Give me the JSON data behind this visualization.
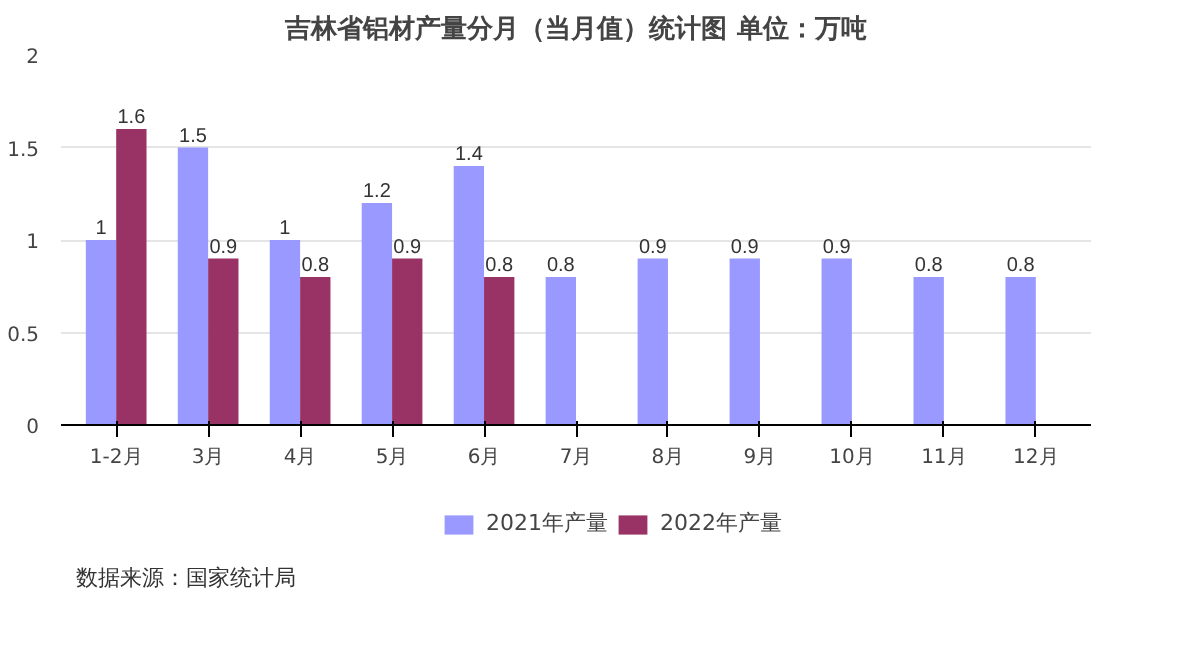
{
  "chart_data": {
    "type": "bar",
    "title": "吉林省铝材产量分月（当月值）统计图 单位：万吨",
    "categories": [
      "1-2月",
      "3月",
      "4月",
      "5月",
      "6月",
      "7月",
      "8月",
      "9月",
      "10月",
      "11月",
      "12月"
    ],
    "series": [
      {
        "name": "2021年产量",
        "color": "#9999ff",
        "values": [
          1,
          1.5,
          1,
          1.2,
          1.4,
          0.8,
          0.9,
          0.9,
          0.9,
          0.8,
          0.8
        ]
      },
      {
        "name": "2022年产量",
        "color": "#993366",
        "values": [
          1.6,
          0.9,
          0.8,
          0.9,
          0.8,
          null,
          null,
          null,
          null,
          null,
          null
        ]
      }
    ],
    "ylim": [
      0,
      2
    ],
    "yticks": [
      0,
      0.5,
      1,
      1.5,
      2
    ],
    "grid": "y",
    "legend": "bottom",
    "data_labels": true,
    "annotations": [
      "数据来源：国家统计局"
    ]
  }
}
